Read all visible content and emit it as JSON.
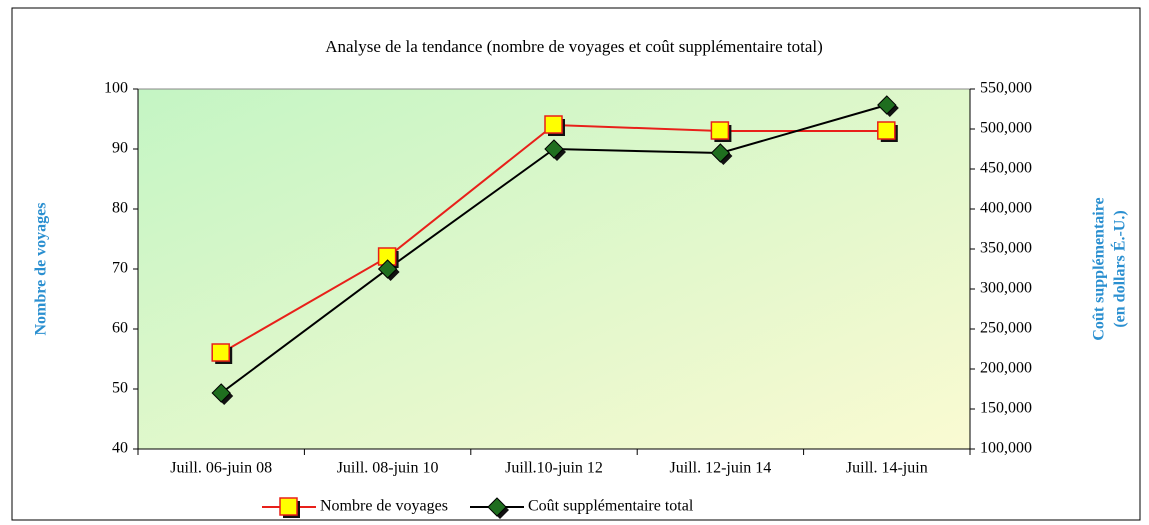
{
  "chart_data": {
    "type": "line",
    "title": "Analyse de la tendance (nombre de voyages et coût supplémentaire total)",
    "categories": [
      "Juill. 06-juin 08",
      "Juill. 08-juin 10",
      "Juill.10-juin 12",
      "Juill. 12-juin 14",
      "Juill. 14-juin"
    ],
    "series": [
      {
        "name": "Nombre de voyages",
        "color": "#e8201a",
        "marker_color": "#ffff00",
        "values": [
          56,
          72,
          94,
          93,
          93
        ]
      },
      {
        "name": "Coût supplémentaire total",
        "color": "#000000",
        "marker_color": "#1f6e1f",
        "axis": "y2",
        "values": [
          170000,
          325000,
          475000,
          470000,
          530000
        ]
      }
    ],
    "ylabel": "Nombre de voyages",
    "y2label": [
      "Coût supplémentaire",
      "(en dollars É.-U.)"
    ],
    "ylim": [
      40,
      100
    ],
    "yticks": [
      40,
      50,
      60,
      70,
      80,
      90,
      100
    ],
    "y2lim": [
      100000,
      550000
    ],
    "y2ticks": [
      {
        "value": 100000,
        "label": "100,000"
      },
      {
        "value": 150000,
        "label": "150,000"
      },
      {
        "value": 200000,
        "label": "200,000"
      },
      {
        "value": 250000,
        "label": "250,000"
      },
      {
        "value": 300000,
        "label": "300,000"
      },
      {
        "value": 350000,
        "label": "350,000"
      },
      {
        "value": 400000,
        "label": "400,000"
      },
      {
        "value": 450000,
        "label": "450,000"
      },
      {
        "value": 500000,
        "label": "500,000"
      },
      {
        "value": 550000,
        "label": "550,000"
      }
    ],
    "legend": "bottom"
  }
}
